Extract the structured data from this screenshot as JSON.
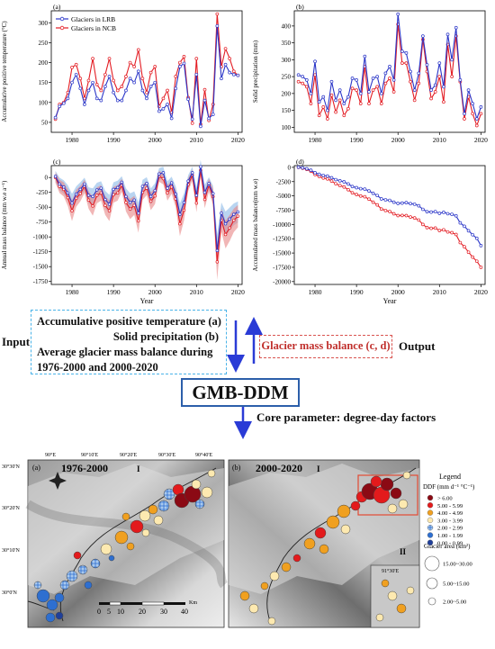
{
  "colors": {
    "lrb": "#2b36c8",
    "ncb": "#e31c23",
    "arrow": "#2a3bd6",
    "input_border": "#4ab3e8",
    "output_border": "#d9534f",
    "model_border": "#2c5faa"
  },
  "panel_a": {
    "tag": "(a)",
    "ylabel": "Accumulative positive temperature (°C)",
    "xticks": [
      "1980",
      "1990",
      "2000",
      "2010",
      "2020"
    ],
    "yticks": [
      "50",
      "100",
      "150",
      "200",
      "250",
      "300"
    ],
    "legend": [
      {
        "name": "Glaciers in LRB"
      },
      {
        "name": "Glaciers in NCB"
      }
    ]
  },
  "panel_b": {
    "tag": "(b)",
    "ylabel": "Solid precipitation (mm)",
    "xticks": [
      "1980",
      "1990",
      "2000",
      "2010",
      "2020"
    ],
    "yticks": [
      "100",
      "150",
      "200",
      "250",
      "300",
      "350",
      "400"
    ]
  },
  "panel_c": {
    "tag": "(c)",
    "ylabel": "Annual mass balance (mm w.e a⁻¹)",
    "xlabel": "Year",
    "xticks": [
      "1980",
      "1990",
      "2000",
      "2010",
      "2020"
    ],
    "yticks": [
      "0",
      "-250",
      "-500",
      "-750",
      "-1000",
      "-1250",
      "-1500",
      "-1750"
    ]
  },
  "panel_d": {
    "tag": "(d)",
    "ylabel": "Accumulated mass balance(mm w.e)",
    "xlabel": "Year",
    "xticks": [
      "1980",
      "1990",
      "2000",
      "2010",
      "2020"
    ],
    "yticks": [
      "0",
      "-2500",
      "-5000",
      "-7500",
      "-10000",
      "-12500",
      "-15000",
      "-17500",
      "-20000"
    ]
  },
  "chart_data": [
    {
      "type": "line",
      "tag": "(a)",
      "ylabel": "Accumulative positive temperature (°C)",
      "xlim": [
        1975,
        2021
      ],
      "ylim": [
        25,
        330
      ],
      "x": [
        1976,
        1977,
        1978,
        1979,
        1980,
        1981,
        1982,
        1983,
        1984,
        1985,
        1986,
        1987,
        1988,
        1989,
        1990,
        1991,
        1992,
        1993,
        1994,
        1995,
        1996,
        1997,
        1998,
        1999,
        2000,
        2001,
        2002,
        2003,
        2004,
        2005,
        2006,
        2007,
        2008,
        2009,
        2010,
        2011,
        2012,
        2013,
        2014,
        2015,
        2016,
        2017,
        2018,
        2019,
        2020
      ],
      "series": [
        {
          "name": "Glaciers in LRB",
          "values": [
            62,
            90,
            98,
            110,
            150,
            170,
            135,
            95,
            130,
            150,
            110,
            105,
            140,
            165,
            125,
            105,
            105,
            130,
            160,
            150,
            178,
            130,
            110,
            140,
            150,
            78,
            84,
            95,
            60,
            135,
            190,
            198,
            108,
            58,
            170,
            40,
            105,
            60,
            70,
            292,
            160,
            195,
            175,
            170,
            168
          ]
        },
        {
          "name": "Glaciers in NCB",
          "values": [
            58,
            95,
            100,
            125,
            188,
            195,
            160,
            110,
            155,
            210,
            145,
            130,
            170,
            210,
            155,
            130,
            140,
            165,
            200,
            190,
            232,
            160,
            125,
            175,
            190,
            90,
            110,
            130,
            75,
            165,
            200,
            215,
            112,
            48,
            210,
            45,
            132,
            55,
            95,
            322,
            190,
            235,
            210,
            178,
            168
          ]
        }
      ]
    },
    {
      "type": "line",
      "tag": "(b)",
      "ylabel": "Solid precipitation (mm)",
      "xlim": [
        1975,
        2021
      ],
      "ylim": [
        85,
        445
      ],
      "x": [
        1976,
        1977,
        1978,
        1979,
        1980,
        1981,
        1982,
        1983,
        1984,
        1985,
        1986,
        1987,
        1988,
        1989,
        1990,
        1991,
        1992,
        1993,
        1994,
        1995,
        1996,
        1997,
        1998,
        1999,
        2000,
        2001,
        2002,
        2003,
        2004,
        2005,
        2006,
        2007,
        2008,
        2009,
        2010,
        2011,
        2012,
        2013,
        2014,
        2015,
        2016,
        2017,
        2018,
        2019,
        2020
      ],
      "series": [
        {
          "name": "Glaciers in LRB",
          "values": [
            255,
            250,
            240,
            200,
            295,
            175,
            190,
            150,
            235,
            180,
            210,
            170,
            190,
            245,
            240,
            200,
            310,
            205,
            245,
            250,
            200,
            260,
            280,
            240,
            435,
            325,
            320,
            265,
            210,
            260,
            370,
            285,
            210,
            225,
            290,
            220,
            375,
            300,
            395,
            240,
            140,
            210,
            170,
            125,
            160
          ]
        },
        {
          "name": "Glaciers in NCB",
          "values": [
            235,
            230,
            220,
            170,
            255,
            135,
            160,
            125,
            195,
            145,
            180,
            135,
            155,
            215,
            210,
            170,
            280,
            170,
            210,
            220,
            170,
            230,
            245,
            205,
            405,
            290,
            290,
            235,
            180,
            230,
            360,
            265,
            185,
            205,
            250,
            175,
            345,
            250,
            370,
            235,
            125,
            190,
            140,
            105,
            140
          ]
        }
      ]
    },
    {
      "type": "area",
      "tag": "(c)",
      "ylabel": "Annual mass balance (mm w.e a⁻¹)",
      "xlabel": "Year",
      "xlim": [
        1975,
        2021
      ],
      "ylim": [
        -1800,
        200
      ],
      "x": [
        1976,
        1977,
        1978,
        1979,
        1980,
        1981,
        1982,
        1983,
        1984,
        1985,
        1986,
        1987,
        1988,
        1989,
        1990,
        1991,
        1992,
        1993,
        1994,
        1995,
        1996,
        1997,
        1998,
        1999,
        2000,
        2001,
        2002,
        2003,
        2004,
        2005,
        2006,
        2007,
        2008,
        2009,
        2010,
        2011,
        2012,
        2013,
        2014,
        2015,
        2016,
        2017,
        2018,
        2019,
        2020
      ],
      "series": [
        {
          "name": "Glaciers in LRB",
          "values": [
            20,
            -110,
            -160,
            -260,
            -430,
            -280,
            -200,
            -110,
            -300,
            -320,
            -210,
            -180,
            -370,
            -450,
            -200,
            -170,
            -80,
            -320,
            -420,
            -380,
            -600,
            -150,
            -100,
            -320,
            -220,
            60,
            80,
            -180,
            -90,
            -280,
            -620,
            -420,
            -60,
            80,
            -300,
            180,
            -250,
            -100,
            -270,
            -1230,
            -600,
            -780,
            -700,
            -620,
            -580
          ]
        },
        {
          "name": "Glaciers in NCB",
          "values": [
            0,
            -150,
            -200,
            -340,
            -560,
            -350,
            -270,
            -150,
            -380,
            -480,
            -300,
            -260,
            -470,
            -560,
            -290,
            -260,
            -130,
            -420,
            -530,
            -470,
            -730,
            -250,
            -180,
            -400,
            -310,
            20,
            -20,
            -260,
            -160,
            -360,
            -780,
            -550,
            -120,
            40,
            -430,
            120,
            -370,
            -130,
            -320,
            -1420,
            -720,
            -960,
            -850,
            -720,
            -650
          ]
        }
      ]
    },
    {
      "type": "line",
      "tag": "(d)",
      "ylabel": "Accumulated mass balance(mm w.e)",
      "xlabel": "Year",
      "xlim": [
        1975,
        2021
      ],
      "ylim": [
        -20500,
        300
      ],
      "x": [
        1976,
        1977,
        1978,
        1979,
        1980,
        1981,
        1982,
        1983,
        1984,
        1985,
        1986,
        1987,
        1988,
        1989,
        1990,
        1991,
        1992,
        1993,
        1994,
        1995,
        1996,
        1997,
        1998,
        1999,
        2000,
        2001,
        2002,
        2003,
        2004,
        2005,
        2006,
        2007,
        2008,
        2009,
        2010,
        2011,
        2012,
        2013,
        2014,
        2015,
        2016,
        2017,
        2018,
        2019,
        2020
      ],
      "series": [
        {
          "name": "Glaciers in LRB",
          "values": [
            20,
            -90,
            -250,
            -510,
            -940,
            -1220,
            -1420,
            -1530,
            -1830,
            -2150,
            -2360,
            -2540,
            -2910,
            -3360,
            -3560,
            -3730,
            -3810,
            -4130,
            -4550,
            -4930,
            -5530,
            -5680,
            -5780,
            -6100,
            -6320,
            -6260,
            -6180,
            -6360,
            -6450,
            -6730,
            -7350,
            -7770,
            -7830,
            -7750,
            -8050,
            -7870,
            -8120,
            -8220,
            -8490,
            -9720,
            -10320,
            -11100,
            -11800,
            -12420,
            -13700
          ]
        },
        {
          "name": "Glaciers in NCB",
          "values": [
            0,
            -150,
            -350,
            -690,
            -1250,
            -1600,
            -1870,
            -2020,
            -2400,
            -2880,
            -3180,
            -3440,
            -3910,
            -4470,
            -4760,
            -5020,
            -5150,
            -5570,
            -6100,
            -6570,
            -7300,
            -7550,
            -7730,
            -8130,
            -8440,
            -8420,
            -8440,
            -8700,
            -8860,
            -9220,
            -10000,
            -10550,
            -10670,
            -10630,
            -11060,
            -10940,
            -11310,
            -11440,
            -11760,
            -13180,
            -13900,
            -14860,
            -15710,
            -16430,
            -17500
          ]
        }
      ]
    }
  ],
  "flow": {
    "input_label": "Input",
    "inputs": [
      "Accumulative positive temperature (a)",
      "Solid precipitation (b)",
      "Average glacier mass balance during",
      "1976-2000 and 2000-2020"
    ],
    "output_box": "Glacier mass balance (c, d)",
    "output_label": "Output",
    "model": "GMB-DDM",
    "core": "Core parameter:  degree-day factors"
  },
  "maps": {
    "map1_tag": "(a)",
    "map1_title": "1976-2000",
    "map1_roman": "I",
    "map2_tag": "(b)",
    "map2_title": "2000-2020",
    "map2_roman": "I",
    "map2_roman2": "II",
    "top_ticks": [
      "90°E",
      "90°10'E",
      "90°20'E",
      "90°30'E",
      "90°40'E"
    ],
    "left_ticks": [
      "30°30'N",
      "30°20'N",
      "30°10'N",
      "30°0'N"
    ],
    "inset_tick": "91°30'E",
    "scale_labels": [
      "0",
      "5",
      "10",
      "20",
      "30",
      "40"
    ],
    "scale_unit": "Km"
  },
  "legend": {
    "title": "Legend",
    "ddf_title": "DDF (mm d⁻¹ °C⁻¹)",
    "ddf_classes": [
      {
        "label": "> 6.00",
        "color": "#8b0a14"
      },
      {
        "label": "5.00 - 5.99",
        "color": "#e31a1c"
      },
      {
        "label": "4.00 - 4.99",
        "color": "#f0a020"
      },
      {
        "label": "3.00 - 3.99",
        "color": "#fde9b0"
      },
      {
        "label": "2.00 - 2.99",
        "color": "#a9c9ee"
      },
      {
        "label": "1.00 - 1.99",
        "color": "#2e6fd0"
      },
      {
        "label": "0.00 - 0.99",
        "color": "#1f3f9a"
      }
    ],
    "area_title": "Glacier area (km²)",
    "area_classes": [
      "15.00~30.00",
      "5.00~15.00",
      "2.00~5.00"
    ]
  }
}
